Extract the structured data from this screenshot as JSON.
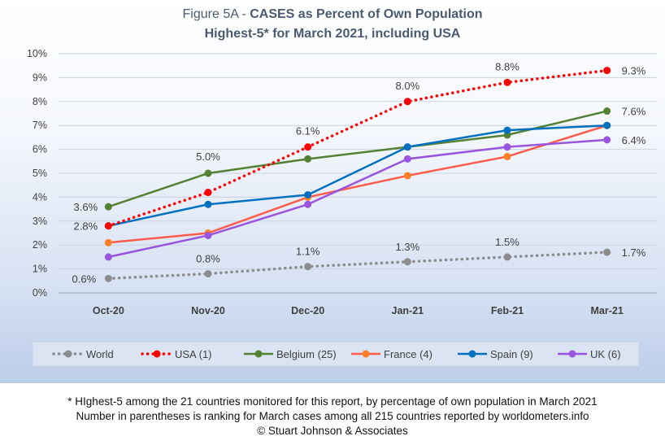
{
  "chart_data": {
    "type": "line",
    "title_prefix": "Figure 5A - ",
    "title_bold": "CASES as Percent of Own Population",
    "subtitle": "Highest-5* for March 2021, including USA",
    "categories": [
      "Oct-20",
      "Nov-20",
      "Dec-20",
      "Jan-21",
      "Feb-21",
      "Mar-21"
    ],
    "ylim": [
      0,
      10
    ],
    "yticks": [
      "0%",
      "1%",
      "2%",
      "3%",
      "4%",
      "5%",
      "6%",
      "7%",
      "8%",
      "9%",
      "10%"
    ],
    "grid": true,
    "legend_position": "bottom",
    "series": [
      {
        "name": "World",
        "color": "#8c8c8c",
        "style": "dotted",
        "values": [
          0.6,
          0.8,
          1.1,
          1.3,
          1.5,
          1.7
        ],
        "labels": [
          "0.6%",
          "0.8%",
          "1.1%",
          "1.3%",
          "1.5%",
          "1.7%"
        ]
      },
      {
        "name": "USA (1)",
        "color": "#ff0000",
        "style": "dotted",
        "values": [
          2.8,
          4.2,
          6.1,
          8.0,
          8.8,
          9.3
        ],
        "labels": [
          "",
          "",
          "6.1%",
          "8.0%",
          "8.8%",
          "9.3%"
        ]
      },
      {
        "name": "Belgium (25)",
        "color": "#548235",
        "style": "solid",
        "values": [
          3.6,
          5.0,
          5.6,
          6.1,
          6.6,
          7.6
        ],
        "labels": [
          "3.6%",
          "5.0%",
          "",
          "",
          "",
          "7.6%"
        ]
      },
      {
        "name": "France (4)",
        "color": "#ff5b4b",
        "style": "solid",
        "values": [
          2.1,
          2.5,
          4.0,
          4.9,
          5.7,
          7.0
        ],
        "labels": [
          "",
          "",
          "",
          "",
          "",
          ""
        ]
      },
      {
        "name": "Spain (9)",
        "color": "#0070c0",
        "style": "solid",
        "values": [
          2.8,
          3.7,
          4.1,
          6.1,
          6.8,
          7.0
        ],
        "labels": [
          "2.8%",
          "",
          "",
          "",
          "",
          ""
        ]
      },
      {
        "name": "UK (6)",
        "color": "#9955dd",
        "style": "solid",
        "values": [
          1.5,
          2.4,
          3.7,
          5.6,
          6.1,
          6.4
        ],
        "labels": [
          "",
          "",
          "",
          "",
          "",
          "6.4%"
        ]
      }
    ],
    "marker_colors": {
      "France (4)": "#ff7f27"
    }
  },
  "footnote": {
    "line1": "* HIghest-5 among the 21 countries monitored for this report, by percentage of own population in March 2021",
    "line2": "Number in parentheses is ranking for March cases among all 215 countries reported by worldometers.info",
    "line3": "© Stuart Johnson & Associates"
  }
}
